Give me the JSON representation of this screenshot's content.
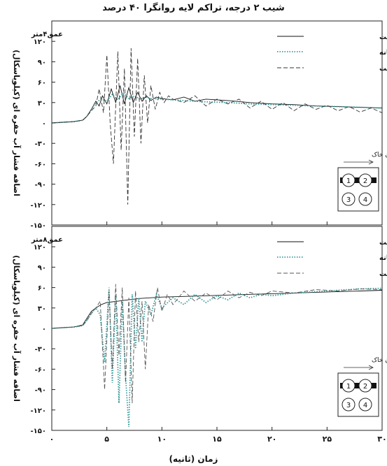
{
  "figure_title": "شیب ۲ درجه، تراکم لایه روانگرا ۴۰ درصد",
  "xlabel": "زمان (ثانیه)",
  "x_ticks": [
    "۰",
    "۵",
    "۱۰",
    "۱۵",
    "۲۰",
    "۲۵",
    "۳۰"
  ],
  "inset": {
    "label": "جریان خاک",
    "cells": [
      "1",
      "2",
      "3",
      "4"
    ]
  },
  "chart_data": [
    {
      "type": "line",
      "panel_label": "عمق۴متر",
      "ylabel": "اضافه فشار آب حفره ای (کیلوپاسکال)",
      "xlim": [
        0,
        30
      ],
      "ylim": [
        -150,
        150
      ],
      "y_ticks": [
        120,
        90,
        60,
        30,
        0,
        -30,
        -60,
        -90,
        -120,
        -150
      ],
      "y_tick_labels": [
        "۱۲۰",
        "۹۰",
        "۶۰",
        "۳۰",
        "۰",
        "-۳۰",
        "-۶۰",
        "-۹۰",
        "-۱۲۰",
        "-۱۵۰"
      ],
      "series": [
        {
          "name": "بالا دست",
          "style": "solid",
          "color": "#111111",
          "x": [
            0,
            1,
            2,
            2.8,
            3.2,
            3.6,
            4.0,
            4.3,
            4.6,
            5.0,
            5.4,
            5.8,
            6.2,
            6.6,
            7.0,
            7.4,
            7.8,
            8.2,
            8.6,
            9.0,
            9.5,
            10,
            11,
            12,
            13,
            14,
            16,
            18,
            20,
            22,
            24,
            26,
            28,
            30
          ],
          "y": [
            0,
            1,
            2,
            4,
            10,
            20,
            32,
            25,
            40,
            28,
            50,
            30,
            55,
            28,
            52,
            30,
            45,
            32,
            40,
            33,
            38,
            36,
            34,
            38,
            32,
            35,
            33,
            30,
            28,
            27,
            25,
            24,
            23,
            22
          ]
        },
        {
          "name": "میانه",
          "style": "dotted",
          "color": "#3a9a9a",
          "x": [
            0,
            1,
            2,
            2.8,
            3.2,
            3.6,
            4.0,
            4.5,
            5.0,
            5.5,
            6.0,
            6.5,
            7.0,
            7.5,
            8.0,
            8.5,
            9.0,
            10,
            12,
            14,
            16,
            18,
            20,
            22,
            24,
            26,
            28,
            30
          ],
          "y": [
            0,
            1,
            2,
            4,
            10,
            20,
            30,
            35,
            32,
            42,
            34,
            44,
            36,
            40,
            35,
            38,
            36,
            35,
            33,
            31,
            30,
            28,
            27,
            26,
            25,
            24,
            23,
            22
          ]
        },
        {
          "name": "پایین دست",
          "style": "dashed",
          "color": "#333333",
          "x": [
            0,
            1,
            2,
            2.8,
            3.2,
            3.6,
            4.0,
            4.3,
            4.7,
            5.0,
            5.3,
            5.6,
            6.0,
            6.3,
            6.6,
            6.9,
            7.2,
            7.5,
            7.8,
            8.1,
            8.4,
            8.7,
            9.0,
            9.4,
            9.8,
            10.2,
            10.6,
            11,
            12,
            13,
            14,
            15,
            16,
            17,
            18,
            19,
            20,
            21,
            22,
            23,
            24,
            25,
            26,
            27,
            28,
            29,
            30
          ],
          "y": [
            0,
            1,
            2,
            4,
            10,
            18,
            25,
            50,
            15,
            100,
            0,
            -60,
            105,
            -40,
            80,
            -120,
            110,
            -20,
            95,
            -30,
            70,
            0,
            55,
            20,
            45,
            30,
            40,
            35,
            30,
            40,
            25,
            35,
            28,
            35,
            22,
            32,
            20,
            30,
            18,
            28,
            20,
            26,
            18,
            24,
            16,
            22,
            15
          ]
        }
      ]
    },
    {
      "type": "line",
      "panel_label": "عمق۸متر",
      "ylabel": "اضافه فشار آب حفره ای (کیلوپاسکال)",
      "xlim": [
        0,
        30
      ],
      "ylim": [
        -150,
        150
      ],
      "y_ticks": [
        120,
        90,
        60,
        30,
        0,
        -30,
        -60,
        -90,
        -120,
        -150
      ],
      "y_tick_labels": [
        "۱۲۰",
        "۹۰",
        "۶۰",
        "۳۰",
        "۰",
        "-۳۰",
        "-۶۰",
        "-۹۰",
        "-۱۲۰",
        "-۱۵۰"
      ],
      "series": [
        {
          "name": "بالا دست",
          "style": "solid",
          "color": "#111111",
          "x": [
            0,
            1,
            2,
            2.8,
            3.2,
            3.6,
            4.0,
            4.5,
            5.0,
            6,
            7,
            8,
            9,
            10,
            12,
            14,
            16,
            18,
            20,
            22,
            24,
            26,
            28,
            30
          ],
          "y": [
            0,
            1,
            2,
            5,
            15,
            25,
            30,
            35,
            38,
            40,
            42,
            44,
            45,
            46,
            47,
            48,
            49,
            50,
            51,
            52,
            53,
            54,
            55,
            56
          ]
        },
        {
          "name": "میانه",
          "style": "dotted",
          "color": "#3a9a9a",
          "x": [
            0,
            1,
            2,
            2.8,
            3.2,
            3.6,
            4.0,
            4.4,
            4.8,
            5.2,
            5.5,
            5.8,
            6.1,
            6.4,
            6.7,
            7.0,
            7.3,
            7.6,
            7.9,
            8.2,
            8.5,
            9,
            9.5,
            10,
            11,
            12,
            13,
            14,
            15,
            16,
            17,
            18,
            19,
            20,
            22,
            24,
            26,
            28,
            30
          ],
          "y": [
            0,
            1,
            2,
            4,
            12,
            22,
            30,
            20,
            -50,
            60,
            -80,
            50,
            -110,
            40,
            -70,
            -145,
            50,
            -30,
            45,
            -20,
            40,
            20,
            50,
            30,
            45,
            35,
            50,
            38,
            48,
            42,
            52,
            45,
            50,
            48,
            52,
            54,
            56,
            58,
            59
          ]
        },
        {
          "name": "پایین دست",
          "style": "dashed",
          "color": "#555555",
          "x": [
            0,
            1,
            2,
            2.8,
            3.2,
            3.6,
            4.0,
            4.4,
            4.8,
            5.2,
            5.5,
            5.8,
            6.1,
            6.4,
            6.7,
            7.0,
            7.3,
            7.6,
            7.9,
            8.2,
            8.5,
            8.8,
            9.2,
            9.6,
            10,
            10.5,
            11,
            12,
            13,
            14,
            15,
            16,
            17,
            18,
            19,
            20,
            22,
            24,
            26,
            28,
            30
          ],
          "y": [
            0,
            1,
            2,
            4,
            12,
            22,
            30,
            40,
            -90,
            55,
            -60,
            65,
            -40,
            60,
            -80,
            45,
            -110,
            55,
            -20,
            40,
            -60,
            35,
            10,
            60,
            25,
            50,
            35,
            55,
            40,
            52,
            42,
            55,
            45,
            53,
            48,
            55,
            52,
            57,
            55,
            58,
            57
          ]
        }
      ]
    }
  ]
}
